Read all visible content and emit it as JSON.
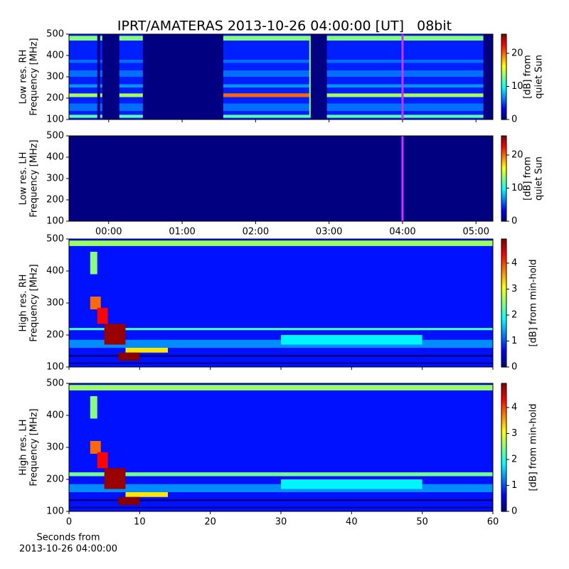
{
  "chart_data": [
    {
      "type": "heatmap",
      "title": "IPRT/AMATERAS 2013-10-26 04:00:00 [UT]   08bit",
      "ylabel": [
        "Low res. RH",
        "Frequency [MHz]"
      ],
      "xlim": [
        -0.54,
        5.23
      ],
      "xticks": [
        0,
        1,
        2,
        3,
        4,
        5
      ],
      "xtick_labels": false,
      "ylim": [
        100,
        500
      ],
      "yticks": [
        100,
        200,
        300,
        400,
        500
      ],
      "colorbar": {
        "label": [
          "[dB] from",
          "quiet Sun"
        ],
        "lim": [
          0,
          25.8
        ],
        "ticks": [
          0,
          10,
          20
        ]
      },
      "background": 4,
      "features": [
        {
          "x": [
            -0.54,
            5.23
          ],
          "y": [
            470,
            492
          ],
          "value": 13
        },
        {
          "x": [
            -0.54,
            5.23
          ],
          "y": [
            205,
            222
          ],
          "value": 14
        },
        {
          "x": [
            -0.54,
            5.23
          ],
          "y": [
            108,
            122
          ],
          "value": 12
        },
        {
          "x": [
            -0.54,
            5.23
          ],
          "y": [
            250,
            265
          ],
          "value": 7
        },
        {
          "x": [
            -0.54,
            5.23
          ],
          "y": [
            140,
            175
          ],
          "value": 6
        },
        {
          "x": [
            -0.54,
            5.23
          ],
          "y": [
            300,
            330
          ],
          "value": 6
        },
        {
          "x": [
            -0.54,
            5.23
          ],
          "y": [
            365,
            380
          ],
          "value": 6
        },
        {
          "x": [
            1.56,
            2.75
          ],
          "y": [
            205,
            222
          ],
          "value": 20
        },
        {
          "x": [
            2.73,
            2.77
          ],
          "y": [
            120,
            480
          ],
          "value": 13
        },
        {
          "x": [
            -0.155,
            -0.116
          ],
          "y": [
            100,
            500
          ],
          "value": 0
        },
        {
          "x": [
            -0.087,
            0.145
          ],
          "y": [
            100,
            500
          ],
          "value": 0
        },
        {
          "x": [
            0.465,
            1.56
          ],
          "y": [
            100,
            500
          ],
          "value": 0
        },
        {
          "x": [
            2.75,
            2.97
          ],
          "y": [
            100,
            500
          ],
          "value": 0
        },
        {
          "x": [
            5.1,
            5.23
          ],
          "y": [
            100,
            500
          ],
          "value": 0
        }
      ],
      "marker": {
        "x": 4.0,
        "color": "#cc33ff"
      }
    },
    {
      "type": "heatmap",
      "ylabel": [
        "Low res. LH",
        "Frequency [MHz]"
      ],
      "xlim": [
        -0.54,
        5.23
      ],
      "xticks": [
        {
          "value": 0,
          "label": "00:00"
        },
        {
          "value": 1,
          "label": "01:00"
        },
        {
          "value": 2,
          "label": "02:00"
        },
        {
          "value": 3,
          "label": "03:00"
        },
        {
          "value": 4,
          "label": "04:00"
        },
        {
          "value": 5,
          "label": "05:00"
        }
      ],
      "xtick_labels": true,
      "ylim": [
        100,
        500
      ],
      "yticks": [
        100,
        200,
        300,
        400,
        500
      ],
      "colorbar": {
        "label": [
          "[dB] from",
          "quiet Sun"
        ],
        "lim": [
          0,
          25.8
        ],
        "ticks": [
          0,
          10,
          20
        ]
      },
      "background": 0,
      "features": [],
      "marker": {
        "x": 4.0,
        "color": "#cc33ff"
      }
    },
    {
      "type": "heatmap",
      "ylabel": [
        "High res. RH",
        "Frequency [MHz]"
      ],
      "xlim": [
        0,
        60
      ],
      "xticks": [
        0,
        10,
        20,
        30,
        40,
        50,
        60
      ],
      "xtick_labels": false,
      "ylim": [
        100,
        500
      ],
      "yticks": [
        100,
        200,
        300,
        400,
        500
      ],
      "colorbar": {
        "label": [
          "[dB] from min-hold"
        ],
        "lim": [
          0,
          4.93
        ],
        "ticks": [
          0,
          1,
          2,
          3,
          4
        ]
      },
      "background": 0.7,
      "features": [
        {
          "x": [
            0,
            60
          ],
          "y": [
            478,
            495
          ],
          "value": 2.6
        },
        {
          "x": [
            0,
            60
          ],
          "y": [
            215,
            222
          ],
          "value": 2.2
        },
        {
          "x": [
            0,
            60
          ],
          "y": [
            132,
            138
          ],
          "value": 0
        },
        {
          "x": [
            0,
            60
          ],
          "y": [
            110,
            114
          ],
          "value": 0
        },
        {
          "x": [
            0,
            60
          ],
          "y": [
            160,
            185
          ],
          "value": 1.3
        },
        {
          "x": [
            3,
            4
          ],
          "y": [
            390,
            460
          ],
          "value": 2.5
        },
        {
          "x": [
            3,
            4.5
          ],
          "y": [
            280,
            320
          ],
          "value": 3.8
        },
        {
          "x": [
            4,
            5.5
          ],
          "y": [
            235,
            285
          ],
          "value": 4.3
        },
        {
          "x": [
            5,
            8
          ],
          "y": [
            170,
            235
          ],
          "value": 4.8
        },
        {
          "x": [
            8,
            14
          ],
          "y": [
            145,
            160
          ],
          "value": 3.2
        },
        {
          "x": [
            7,
            10
          ],
          "y": [
            120,
            145
          ],
          "value": 4.9
        },
        {
          "x": [
            30,
            50
          ],
          "y": [
            170,
            200
          ],
          "value": 1.8
        }
      ]
    },
    {
      "type": "heatmap",
      "ylabel": [
        "High res. LH",
        "Frequency [MHz]"
      ],
      "xlabel": [
        "Seconds from",
        "2013-10-26 04:00:00"
      ],
      "xlim": [
        0,
        60
      ],
      "xticks": [
        0,
        10,
        20,
        30,
        40,
        50,
        60
      ],
      "xtick_labels": true,
      "ylim": [
        100,
        500
      ],
      "yticks": [
        100,
        200,
        300,
        400,
        500
      ],
      "colorbar": {
        "label": [
          "[dB] from min-hold"
        ],
        "lim": [
          0,
          4.93
        ],
        "ticks": [
          0,
          1,
          2,
          3,
          4
        ]
      },
      "background": 0.7,
      "features": [
        {
          "x": [
            0,
            60
          ],
          "y": [
            478,
            495
          ],
          "value": 2.6
        },
        {
          "x": [
            0,
            60
          ],
          "y": [
            210,
            222
          ],
          "value": 2.4
        },
        {
          "x": [
            0,
            60
          ],
          "y": [
            132,
            138
          ],
          "value": 0
        },
        {
          "x": [
            0,
            60
          ],
          "y": [
            110,
            114
          ],
          "value": 0
        },
        {
          "x": [
            0,
            60
          ],
          "y": [
            160,
            185
          ],
          "value": 1.3
        },
        {
          "x": [
            3,
            4
          ],
          "y": [
            390,
            460
          ],
          "value": 2.5
        },
        {
          "x": [
            3,
            4.5
          ],
          "y": [
            280,
            320
          ],
          "value": 3.8
        },
        {
          "x": [
            4,
            5.5
          ],
          "y": [
            235,
            285
          ],
          "value": 4.3
        },
        {
          "x": [
            5,
            8
          ],
          "y": [
            170,
            235
          ],
          "value": 4.8
        },
        {
          "x": [
            8,
            14
          ],
          "y": [
            145,
            160
          ],
          "value": 3.2
        },
        {
          "x": [
            7,
            10
          ],
          "y": [
            120,
            145
          ],
          "value": 4.9
        },
        {
          "x": [
            30,
            50
          ],
          "y": [
            170,
            200
          ],
          "value": 1.8
        }
      ]
    }
  ]
}
